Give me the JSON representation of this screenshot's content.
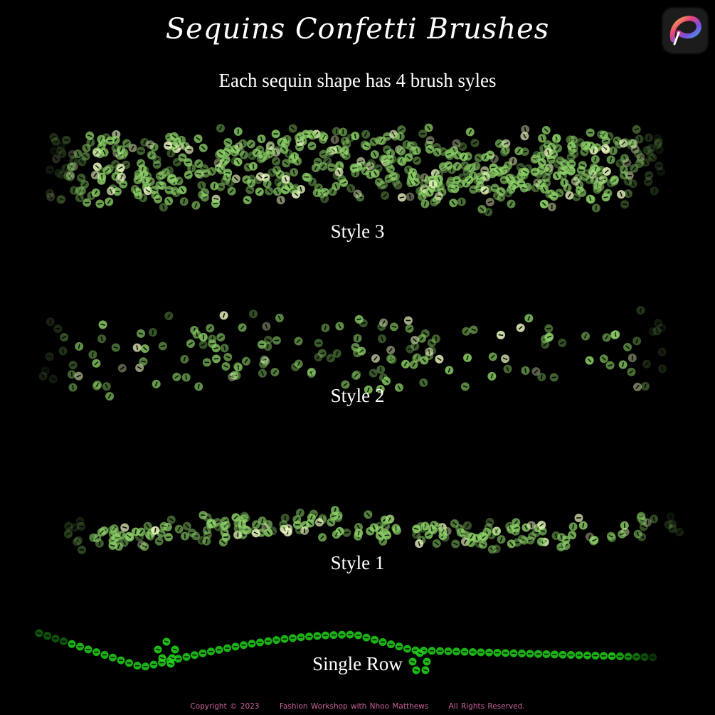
{
  "title": "Sequins Confetti Brushes",
  "subtitle": "Each sequin shape has 4 brush syles",
  "styles": [
    {
      "label": "Style 3"
    },
    {
      "label": "Style 2"
    },
    {
      "label": "Style 1"
    },
    {
      "label": "Single Row"
    }
  ],
  "logo_icon": "procreate-app-icon",
  "colors": {
    "sequin": "#8fd36a",
    "sequin_highlight": "#f4ffc8",
    "single_row": "#22d11a",
    "footer": "#c9609b",
    "background": "#000000"
  },
  "footer": {
    "copyright": "Copyright © 2023",
    "owner": "Fashion Workshop with Nhoo Matthews",
    "rights": "All Rights Reserved."
  }
}
